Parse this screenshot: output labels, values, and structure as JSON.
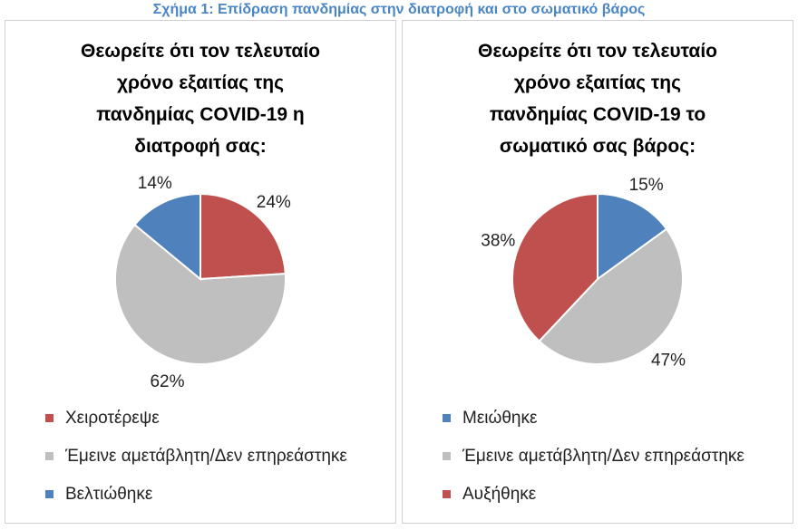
{
  "figure_title": "Σχήμα 1: Επίδραση πανδημίας στην διατροφή και στο σωματικό βάρος",
  "colors": {
    "red": "#c0504d",
    "grey": "#bfbfbf",
    "blue": "#4f81bd",
    "title": "#4a86c5"
  },
  "chart_data": [
    {
      "type": "pie",
      "title_lines": [
        "Θεωρείτε ότι τον τελευταίο",
        "χρόνο εξαιτίας της",
        "πανδημίας COVID-19 η",
        "διατροφή σας:"
      ],
      "categories": [
        "Χειροτέρεψε",
        "Έμεινε αμετάβλητη/Δεν επηρεάστηκε",
        "Βελτιώθηκε"
      ],
      "values": [
        24,
        62,
        14
      ],
      "value_labels": [
        "24%",
        "62%",
        "14%"
      ],
      "colors": [
        "#c0504d",
        "#bfbfbf",
        "#4f81bd"
      ],
      "legend_position": "bottom"
    },
    {
      "type": "pie",
      "title_lines": [
        "Θεωρείτε ότι τον τελευταίο",
        "χρόνο εξαιτίας της",
        "πανδημίας COVID-19 το",
        "σωματικό σας βάρος:"
      ],
      "categories": [
        "Μειώθηκε",
        "Έμεινε αμετάβλητη/Δεν επηρεάστηκε",
        "Αυξήθηκε"
      ],
      "values": [
        15,
        47,
        38
      ],
      "value_labels": [
        "15%",
        "47%",
        "38%"
      ],
      "colors": [
        "#4f81bd",
        "#bfbfbf",
        "#c0504d"
      ],
      "legend_position": "bottom"
    }
  ]
}
